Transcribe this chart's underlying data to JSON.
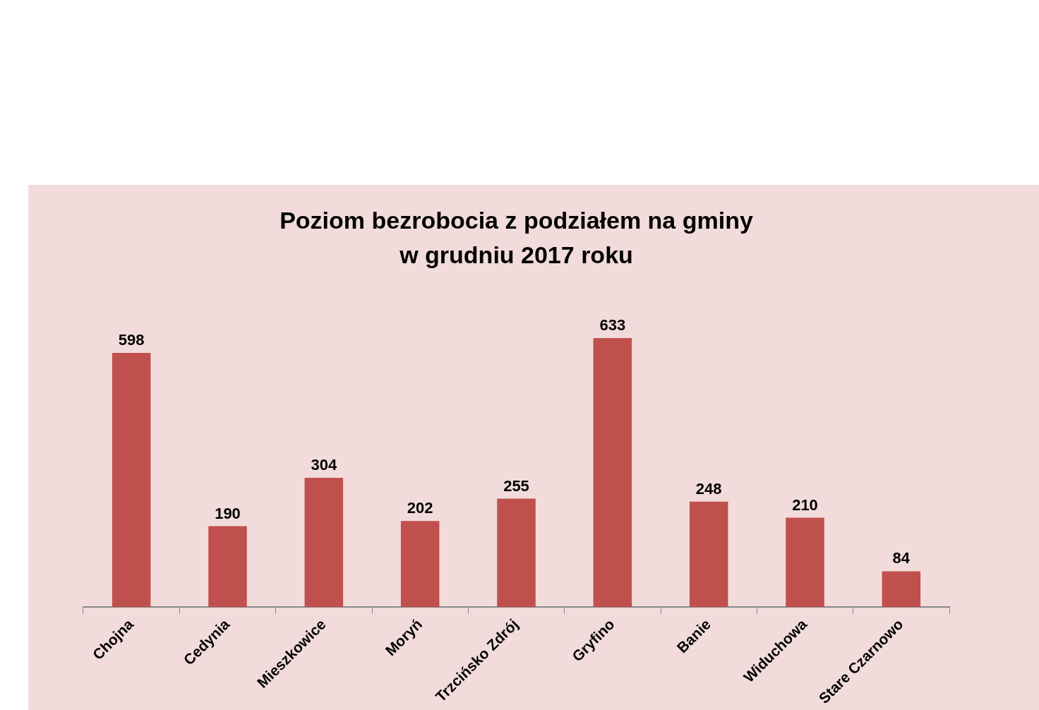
{
  "chart_data": {
    "type": "bar",
    "title": "Poziom bezrobocia z podziałem na gminy\nw grudniu 2017 roku",
    "categories": [
      "Chojna",
      "Cedynia",
      "Mieszkowice",
      "Moryń",
      "Trzcińsko Zdrój",
      "Gryfino",
      "Banie",
      "Widuchowa",
      "Stare Czarnowo"
    ],
    "values": [
      598,
      190,
      304,
      202,
      255,
      633,
      248,
      210,
      84
    ],
    "color": "#c0504d",
    "data_labels": true,
    "grid": false,
    "legend": false,
    "tick_labels": "x"
  }
}
